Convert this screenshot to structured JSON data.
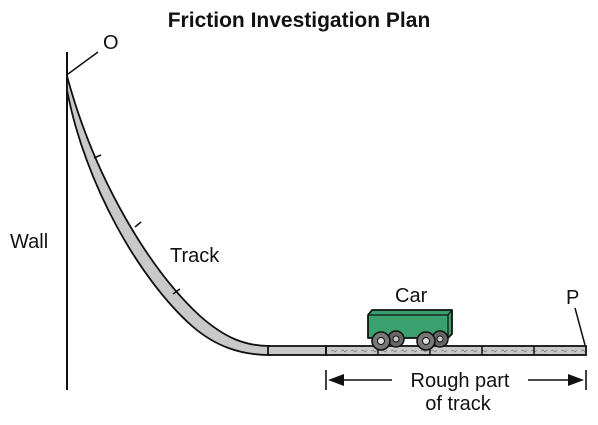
{
  "title": "Friction Investigation Plan",
  "labels": {
    "point_o": "O",
    "point_p": "P",
    "wall": "Wall",
    "track": "Track",
    "car": "Car",
    "rough_line1": "Rough part",
    "rough_line2": "of track"
  },
  "colors": {
    "car_body": "#3aa16e",
    "track_fill": "#c9c9c9",
    "outline": "#111111"
  }
}
